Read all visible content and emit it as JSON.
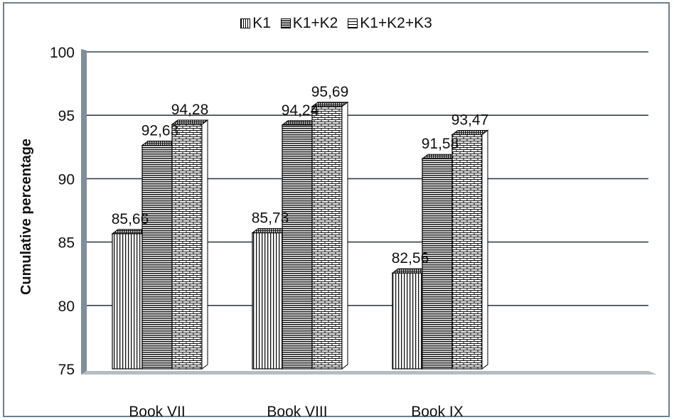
{
  "chart_data": {
    "type": "bar",
    "title": "",
    "xlabel": "",
    "ylabel": "Cumulative percentage",
    "ylim": [
      75,
      100
    ],
    "yticks": [
      "75",
      "80",
      "85",
      "90",
      "95",
      "100"
    ],
    "grid": true,
    "legend_position": "top",
    "categories": [
      "Book VII",
      "Book VIII",
      "Book IX"
    ],
    "series": [
      {
        "name": "K1",
        "values": [
          85.66,
          85.73,
          82.56
        ],
        "labels": [
          "85,66",
          "85,73",
          "82,56"
        ],
        "pattern": "vertical-stripes"
      },
      {
        "name": "K1+K2",
        "values": [
          92.63,
          94.24,
          91.58
        ],
        "labels": [
          "92,63",
          "94,24",
          "91,58"
        ],
        "pattern": "horizontal-stripes"
      },
      {
        "name": "K1+K2+K3",
        "values": [
          94.28,
          95.69,
          93.47
        ],
        "labels": [
          "94,28",
          "95,69",
          "93,47"
        ],
        "pattern": "brick"
      }
    ]
  }
}
